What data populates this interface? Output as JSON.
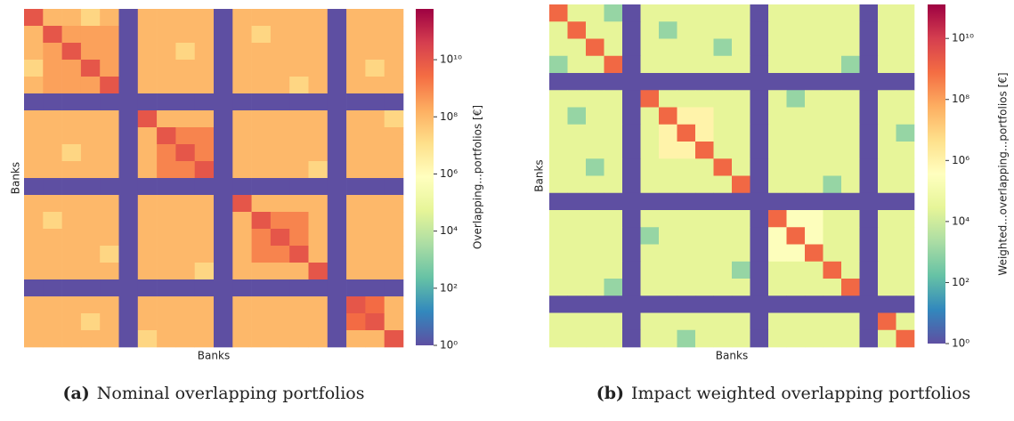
{
  "chart_data": [
    {
      "type": "heatmap",
      "x_label": "Banks",
      "y_label": "Banks",
      "colorbar_label": "Overlapping...portfolios [€]",
      "caption_tag": "(a)",
      "caption": "Nominal overlapping portfolios",
      "log": true,
      "clim": [
        1,
        600000000000.0
      ],
      "colorscale": [
        "#5e4fa2",
        "#3288bd",
        "#66c2a5",
        "#abdda4",
        "#e6f598",
        "#ffffbf",
        "#fee08b",
        "#fdae61",
        "#f46d43",
        "#d53e4f",
        "#9e0142"
      ],
      "cticks": [
        {
          "value": 1,
          "label": "10⁰"
        },
        {
          "value": 100,
          "label": "10²"
        },
        {
          "value": 10000.0,
          "label": "10⁴"
        },
        {
          "value": 1000000.0,
          "label": "10⁶"
        },
        {
          "value": 100000000.0,
          "label": "10⁸"
        },
        {
          "value": 10000000000.0,
          "label": "10¹⁰"
        }
      ],
      "z": [
        [
          10000000000.0,
          100000000.0,
          100000000.0,
          20000000.0,
          100000000.0,
          1,
          100000000.0,
          100000000.0,
          100000000.0,
          100000000.0,
          1,
          100000000.0,
          100000000.0,
          100000000.0,
          100000000.0,
          100000000.0,
          1,
          100000000.0,
          100000000.0,
          100000000.0
        ],
        [
          100000000.0,
          10000000000.0,
          300000000.0,
          300000000.0,
          300000000.0,
          1,
          100000000.0,
          100000000.0,
          100000000.0,
          100000000.0,
          1,
          100000000.0,
          20000000.0,
          100000000.0,
          100000000.0,
          100000000.0,
          1,
          100000000.0,
          100000000.0,
          100000000.0
        ],
        [
          100000000.0,
          300000000.0,
          10000000000.0,
          300000000.0,
          300000000.0,
          1,
          100000000.0,
          100000000.0,
          20000000.0,
          100000000.0,
          1,
          100000000.0,
          100000000.0,
          100000000.0,
          100000000.0,
          100000000.0,
          1,
          100000000.0,
          100000000.0,
          100000000.0
        ],
        [
          20000000.0,
          300000000.0,
          300000000.0,
          10000000000.0,
          300000000.0,
          1,
          100000000.0,
          100000000.0,
          100000000.0,
          100000000.0,
          1,
          100000000.0,
          100000000.0,
          100000000.0,
          100000000.0,
          100000000.0,
          1,
          100000000.0,
          20000000.0,
          100000000.0
        ],
        [
          100000000.0,
          300000000.0,
          300000000.0,
          300000000.0,
          10000000000.0,
          1,
          100000000.0,
          100000000.0,
          100000000.0,
          100000000.0,
          1,
          100000000.0,
          100000000.0,
          100000000.0,
          20000000.0,
          100000000.0,
          1,
          100000000.0,
          100000000.0,
          100000000.0
        ],
        [
          1,
          1,
          1,
          1,
          1,
          1,
          1,
          1,
          1,
          1,
          1,
          1,
          1,
          1,
          1,
          1,
          1,
          1,
          1,
          1
        ],
        [
          100000000.0,
          100000000.0,
          100000000.0,
          100000000.0,
          100000000.0,
          1,
          10000000000.0,
          100000000.0,
          100000000.0,
          100000000.0,
          1,
          100000000.0,
          100000000.0,
          100000000.0,
          100000000.0,
          100000000.0,
          1,
          100000000.0,
          100000000.0,
          20000000.0
        ],
        [
          100000000.0,
          100000000.0,
          100000000.0,
          100000000.0,
          100000000.0,
          1,
          100000000.0,
          10000000000.0,
          1000000000.0,
          1000000000.0,
          1,
          100000000.0,
          100000000.0,
          100000000.0,
          100000000.0,
          100000000.0,
          1,
          100000000.0,
          100000000.0,
          100000000.0
        ],
        [
          100000000.0,
          100000000.0,
          20000000.0,
          100000000.0,
          100000000.0,
          1,
          100000000.0,
          1000000000.0,
          10000000000.0,
          1000000000.0,
          1,
          100000000.0,
          100000000.0,
          100000000.0,
          100000000.0,
          100000000.0,
          1,
          100000000.0,
          100000000.0,
          100000000.0
        ],
        [
          100000000.0,
          100000000.0,
          100000000.0,
          100000000.0,
          100000000.0,
          1,
          100000000.0,
          1000000000.0,
          1000000000.0,
          10000000000.0,
          1,
          100000000.0,
          100000000.0,
          100000000.0,
          100000000.0,
          20000000.0,
          1,
          100000000.0,
          100000000.0,
          100000000.0
        ],
        [
          1,
          1,
          1,
          1,
          1,
          1,
          1,
          1,
          1,
          1,
          1,
          1,
          1,
          1,
          1,
          1,
          1,
          1,
          1,
          1
        ],
        [
          100000000.0,
          100000000.0,
          100000000.0,
          100000000.0,
          100000000.0,
          1,
          100000000.0,
          100000000.0,
          100000000.0,
          100000000.0,
          1,
          10000000000.0,
          100000000.0,
          100000000.0,
          100000000.0,
          100000000.0,
          1,
          100000000.0,
          100000000.0,
          100000000.0
        ],
        [
          100000000.0,
          20000000.0,
          100000000.0,
          100000000.0,
          100000000.0,
          1,
          100000000.0,
          100000000.0,
          100000000.0,
          100000000.0,
          1,
          100000000.0,
          10000000000.0,
          1000000000.0,
          1000000000.0,
          100000000.0,
          1,
          100000000.0,
          100000000.0,
          100000000.0
        ],
        [
          100000000.0,
          100000000.0,
          100000000.0,
          100000000.0,
          100000000.0,
          1,
          100000000.0,
          100000000.0,
          100000000.0,
          100000000.0,
          1,
          100000000.0,
          1000000000.0,
          10000000000.0,
          1000000000.0,
          100000000.0,
          1,
          100000000.0,
          100000000.0,
          100000000.0
        ],
        [
          100000000.0,
          100000000.0,
          100000000.0,
          100000000.0,
          20000000.0,
          1,
          100000000.0,
          100000000.0,
          100000000.0,
          100000000.0,
          1,
          100000000.0,
          1000000000.0,
          1000000000.0,
          10000000000.0,
          100000000.0,
          1,
          100000000.0,
          100000000.0,
          100000000.0
        ],
        [
          100000000.0,
          100000000.0,
          100000000.0,
          100000000.0,
          100000000.0,
          1,
          100000000.0,
          100000000.0,
          100000000.0,
          20000000.0,
          1,
          100000000.0,
          100000000.0,
          100000000.0,
          100000000.0,
          10000000000.0,
          1,
          100000000.0,
          100000000.0,
          100000000.0
        ],
        [
          1,
          1,
          1,
          1,
          1,
          1,
          1,
          1,
          1,
          1,
          1,
          1,
          1,
          1,
          1,
          1,
          1,
          1,
          1,
          1
        ],
        [
          100000000.0,
          100000000.0,
          100000000.0,
          100000000.0,
          100000000.0,
          1,
          100000000.0,
          100000000.0,
          100000000.0,
          100000000.0,
          1,
          100000000.0,
          100000000.0,
          100000000.0,
          100000000.0,
          100000000.0,
          1,
          10000000000.0,
          3000000000.0,
          100000000.0
        ],
        [
          100000000.0,
          100000000.0,
          100000000.0,
          20000000.0,
          100000000.0,
          1,
          100000000.0,
          100000000.0,
          100000000.0,
          100000000.0,
          1,
          100000000.0,
          100000000.0,
          100000000.0,
          100000000.0,
          100000000.0,
          1,
          3000000000.0,
          10000000000.0,
          100000000.0
        ],
        [
          100000000.0,
          100000000.0,
          100000000.0,
          100000000.0,
          100000000.0,
          1,
          20000000.0,
          100000000.0,
          100000000.0,
          100000000.0,
          1,
          100000000.0,
          100000000.0,
          100000000.0,
          100000000.0,
          100000000.0,
          1,
          100000000.0,
          100000000.0,
          10000000000.0
        ]
      ]
    },
    {
      "type": "heatmap",
      "x_label": "Banks",
      "y_label": "Banks",
      "colorbar_label": "Weighted...overlapping...portfolios [€]",
      "caption_tag": "(b)",
      "caption": "Impact weighted overlapping portfolios",
      "log": true,
      "clim": [
        1,
        130000000000.0
      ],
      "colorscale": [
        "#5e4fa2",
        "#3288bd",
        "#66c2a5",
        "#abdda4",
        "#e6f598",
        "#ffffbf",
        "#fee08b",
        "#fdae61",
        "#f46d43",
        "#d53e4f",
        "#9e0142"
      ],
      "cticks": [
        {
          "value": 1,
          "label": "10⁰"
        },
        {
          "value": 100,
          "label": "10²"
        },
        {
          "value": 10000.0,
          "label": "10⁴"
        },
        {
          "value": 1000000.0,
          "label": "10⁶"
        },
        {
          "value": 100000000.0,
          "label": "10⁸"
        },
        {
          "value": 10000000000.0,
          "label": "10¹⁰"
        }
      ],
      "z": [
        [
          1000000000.0,
          30000.0,
          30000.0,
          1000.0,
          1,
          30000.0,
          30000.0,
          30000.0,
          30000.0,
          30000.0,
          30000.0,
          1,
          30000.0,
          30000.0,
          30000.0,
          30000.0,
          30000.0,
          1,
          30000.0,
          30000.0
        ],
        [
          30000.0,
          1000000000.0,
          30000.0,
          30000.0,
          1,
          30000.0,
          1000.0,
          30000.0,
          30000.0,
          30000.0,
          30000.0,
          1,
          30000.0,
          30000.0,
          30000.0,
          30000.0,
          30000.0,
          1,
          30000.0,
          30000.0
        ],
        [
          30000.0,
          30000.0,
          1000000000.0,
          30000.0,
          1,
          30000.0,
          30000.0,
          30000.0,
          30000.0,
          1000.0,
          30000.0,
          1,
          30000.0,
          30000.0,
          30000.0,
          30000.0,
          30000.0,
          1,
          30000.0,
          30000.0
        ],
        [
          1000.0,
          30000.0,
          30000.0,
          1000000000.0,
          1,
          30000.0,
          30000.0,
          30000.0,
          30000.0,
          30000.0,
          30000.0,
          1,
          30000.0,
          30000.0,
          30000.0,
          30000.0,
          1000.0,
          1,
          30000.0,
          30000.0
        ],
        [
          1,
          1,
          1,
          1,
          1,
          1,
          1,
          1,
          1,
          1,
          1,
          1,
          1,
          1,
          1,
          1,
          1,
          1,
          1,
          1
        ],
        [
          30000.0,
          30000.0,
          30000.0,
          30000.0,
          1,
          1000000000.0,
          30000.0,
          30000.0,
          30000.0,
          30000.0,
          30000.0,
          1,
          30000.0,
          1000.0,
          30000.0,
          30000.0,
          30000.0,
          1,
          30000.0,
          30000.0
        ],
        [
          30000.0,
          1000.0,
          30000.0,
          30000.0,
          1,
          30000.0,
          1000000000.0,
          1000000.0,
          1000000.0,
          30000.0,
          30000.0,
          1,
          30000.0,
          30000.0,
          30000.0,
          30000.0,
          30000.0,
          1,
          30000.0,
          30000.0
        ],
        [
          30000.0,
          30000.0,
          30000.0,
          30000.0,
          1,
          30000.0,
          1000000.0,
          1000000000.0,
          1000000.0,
          30000.0,
          30000.0,
          1,
          30000.0,
          30000.0,
          30000.0,
          30000.0,
          30000.0,
          1,
          30000.0,
          1000.0
        ],
        [
          30000.0,
          30000.0,
          30000.0,
          30000.0,
          1,
          30000.0,
          1000000.0,
          1000000.0,
          1000000000.0,
          30000.0,
          30000.0,
          1,
          30000.0,
          30000.0,
          30000.0,
          30000.0,
          30000.0,
          1,
          30000.0,
          30000.0
        ],
        [
          30000.0,
          30000.0,
          1000.0,
          30000.0,
          1,
          30000.0,
          30000.0,
          30000.0,
          30000.0,
          1000000000.0,
          30000.0,
          1,
          30000.0,
          30000.0,
          30000.0,
          30000.0,
          30000.0,
          1,
          30000.0,
          30000.0
        ],
        [
          30000.0,
          30000.0,
          30000.0,
          30000.0,
          1,
          30000.0,
          30000.0,
          30000.0,
          30000.0,
          30000.0,
          1000000000.0,
          1,
          30000.0,
          30000.0,
          30000.0,
          1000.0,
          30000.0,
          1,
          30000.0,
          30000.0
        ],
        [
          1,
          1,
          1,
          1,
          1,
          1,
          1,
          1,
          1,
          1,
          1,
          1,
          1,
          1,
          1,
          1,
          1,
          1,
          1,
          1
        ],
        [
          30000.0,
          30000.0,
          30000.0,
          30000.0,
          1,
          30000.0,
          30000.0,
          30000.0,
          30000.0,
          30000.0,
          30000.0,
          1,
          1000000000.0,
          300000.0,
          300000.0,
          30000.0,
          30000.0,
          1,
          30000.0,
          30000.0
        ],
        [
          30000.0,
          30000.0,
          30000.0,
          30000.0,
          1,
          1000.0,
          30000.0,
          30000.0,
          30000.0,
          30000.0,
          30000.0,
          1,
          300000.0,
          1000000000.0,
          300000.0,
          30000.0,
          30000.0,
          1,
          30000.0,
          30000.0
        ],
        [
          30000.0,
          30000.0,
          30000.0,
          30000.0,
          1,
          30000.0,
          30000.0,
          30000.0,
          30000.0,
          30000.0,
          30000.0,
          1,
          300000.0,
          300000.0,
          1000000000.0,
          30000.0,
          30000.0,
          1,
          30000.0,
          30000.0
        ],
        [
          30000.0,
          30000.0,
          30000.0,
          30000.0,
          1,
          30000.0,
          30000.0,
          30000.0,
          30000.0,
          30000.0,
          1000.0,
          1,
          30000.0,
          30000.0,
          30000.0,
          1000000000.0,
          30000.0,
          1,
          30000.0,
          30000.0
        ],
        [
          30000.0,
          30000.0,
          30000.0,
          1000.0,
          1,
          30000.0,
          30000.0,
          30000.0,
          30000.0,
          30000.0,
          30000.0,
          1,
          30000.0,
          30000.0,
          30000.0,
          30000.0,
          1000000000.0,
          1,
          30000.0,
          30000.0
        ],
        [
          1,
          1,
          1,
          1,
          1,
          1,
          1,
          1,
          1,
          1,
          1,
          1,
          1,
          1,
          1,
          1,
          1,
          1,
          1,
          1
        ],
        [
          30000.0,
          30000.0,
          30000.0,
          30000.0,
          1,
          30000.0,
          30000.0,
          30000.0,
          30000.0,
          30000.0,
          30000.0,
          1,
          30000.0,
          30000.0,
          30000.0,
          30000.0,
          30000.0,
          1,
          1000000000.0,
          30000.0
        ],
        [
          30000.0,
          30000.0,
          30000.0,
          30000.0,
          1,
          30000.0,
          30000.0,
          1000.0,
          30000.0,
          30000.0,
          30000.0,
          1,
          30000.0,
          30000.0,
          30000.0,
          30000.0,
          30000.0,
          1,
          30000.0,
          1000000000.0
        ]
      ]
    }
  ]
}
